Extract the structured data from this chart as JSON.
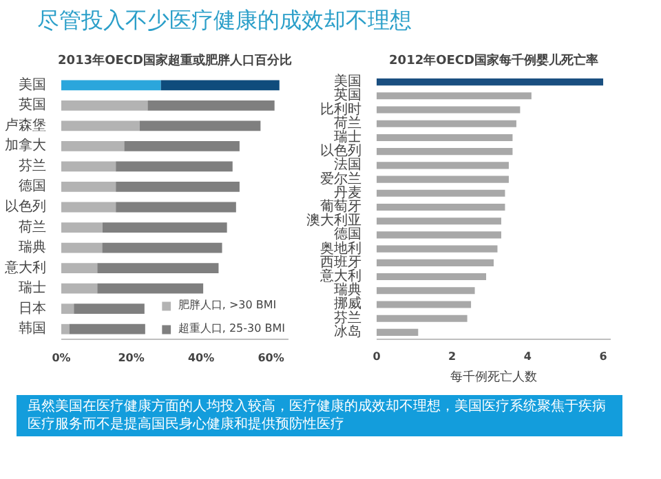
{
  "chart_data": [
    {
      "type": "other",
      "title": "尽管投入不少医疗健康的成效却不理想",
      "annotations": [
        "虽然美国在医疗健康方面的人均投入较高，医疗健康的成效却不理想，美国医疗系统聚焦于疾病医疗服务而不是提高国民身心健康和提供预防性医疗"
      ]
    },
    {
      "type": "bar",
      "orientation": "horizontal",
      "stacked": true,
      "title": "2013年OECD国家超重或肥胖人口百分比",
      "categories": [
        "美国",
        "英国",
        "卢森堡",
        "加拿大",
        "芬兰",
        "德国",
        "以色列",
        "荷兰",
        "瑞典",
        "意大利",
        "瑞士",
        "日本",
        "韩国"
      ],
      "series": [
        {
          "name": "肥胖人口, >30 BMI",
          "color": "#b3b3b3",
          "colors": [
            "#2ba6dc",
            "#b3b3b3",
            "#b3b3b3",
            "#b3b3b3",
            "#b3b3b3",
            "#b3b3b3",
            "#b3b3b3",
            "#b3b3b3",
            "#b3b3b3",
            "#b3b3b3",
            "#b3b3b3",
            "#b3b3b3",
            "#b3b3b3"
          ],
          "values": [
            28.5,
            24.7,
            22.4,
            18,
            15.6,
            15.6,
            15.6,
            11.8,
            11.7,
            10.3,
            10.3,
            3.6,
            2.3
          ]
        },
        {
          "name": "超重人口, 25-30 BMI",
          "color": "#7f7f7f",
          "colors": [
            "#0f4c7c",
            "#7f7f7f",
            "#7f7f7f",
            "#7f7f7f",
            "#7f7f7f",
            "#7f7f7f",
            "#7f7f7f",
            "#7f7f7f",
            "#7f7f7f",
            "#7f7f7f",
            "#7f7f7f",
            "#7f7f7f",
            "#7f7f7f"
          ],
          "values": [
            33.9,
            36.3,
            34.6,
            33,
            33.4,
            35.4,
            34.4,
            35.6,
            34.3,
            34.7,
            30.3,
            20.2,
            21.7
          ]
        }
      ],
      "xlim": [
        0,
        65
      ],
      "xticks": [
        {
          "value": 0,
          "label": "0%"
        },
        {
          "value": 20,
          "label": "20%"
        },
        {
          "value": 40,
          "label": "40%"
        },
        {
          "value": 60,
          "label": "60%"
        }
      ],
      "legend": "bottom right"
    },
    {
      "type": "bar",
      "orientation": "horizontal",
      "title": "2012年OECD国家每千例婴儿死亡率",
      "xlabel": "每千例死亡人数",
      "categories": [
        "美国",
        "英国",
        "比利时",
        "荷兰",
        "瑞士",
        "以色列",
        "法国",
        "爱尔兰",
        "丹麦",
        "葡萄牙",
        "澳大利亚",
        "德国",
        "奥地利",
        "西班牙",
        "意大利",
        "瑞典",
        "挪威",
        "芬兰",
        "冰岛"
      ],
      "series": [
        {
          "colors": [
            "#1a4f80",
            "#a8a8a8",
            "#a8a8a8",
            "#a8a8a8",
            "#a8a8a8",
            "#a8a8a8",
            "#a8a8a8",
            "#a8a8a8",
            "#a8a8a8",
            "#a8a8a8",
            "#a8a8a8",
            "#a8a8a8",
            "#a8a8a8",
            "#a8a8a8",
            "#a8a8a8",
            "#a8a8a8",
            "#a8a8a8",
            "#a8a8a8",
            "#a8a8a8"
          ],
          "values": [
            6.0,
            4.1,
            3.8,
            3.7,
            3.6,
            3.6,
            3.5,
            3.5,
            3.4,
            3.4,
            3.3,
            3.3,
            3.2,
            3.1,
            2.9,
            2.6,
            2.5,
            2.4,
            1.1
          ]
        }
      ],
      "xlim": [
        0,
        6.2
      ],
      "xticks": [
        0,
        2,
        4,
        6
      ]
    }
  ]
}
